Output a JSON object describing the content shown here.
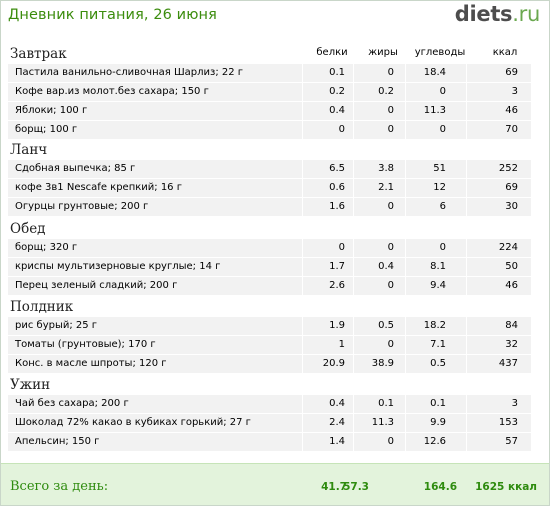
{
  "header": {
    "title": "Дневник питания, 26 июня",
    "logo_main": "diets",
    "logo_dot": ".",
    "logo_tld": "ru"
  },
  "columns": {
    "protein": "белки",
    "fat": "жиры",
    "carbs": "углеводы",
    "kcal": "ккал"
  },
  "meals": [
    {
      "title": "Завтрак",
      "items": [
        {
          "name": "Пастила ванильно-сливочная Шарлиз; 22 г",
          "protein": "0.1",
          "fat": "0",
          "carbs": "18.4",
          "kcal": "69"
        },
        {
          "name": "Кофе вар.из молот.без сахара; 150 г",
          "protein": "0.2",
          "fat": "0.2",
          "carbs": "0",
          "kcal": "3"
        },
        {
          "name": "Яблоки; 100 г",
          "protein": "0.4",
          "fat": "0",
          "carbs": "11.3",
          "kcal": "46"
        },
        {
          "name": "борщ; 100 г",
          "protein": "0",
          "fat": "0",
          "carbs": "0",
          "kcal": "70"
        }
      ]
    },
    {
      "title": "Ланч",
      "items": [
        {
          "name": "Сдобная выпечка; 85 г",
          "protein": "6.5",
          "fat": "3.8",
          "carbs": "51",
          "kcal": "252"
        },
        {
          "name": "кофе 3в1 Nescafe крепкий; 16 г",
          "protein": "0.6",
          "fat": "2.1",
          "carbs": "12",
          "kcal": "69"
        },
        {
          "name": "Огурцы грунтовые; 200 г",
          "protein": "1.6",
          "fat": "0",
          "carbs": "6",
          "kcal": "30"
        }
      ]
    },
    {
      "title": "Обед",
      "items": [
        {
          "name": "борщ; 320 г",
          "protein": "0",
          "fat": "0",
          "carbs": "0",
          "kcal": "224"
        },
        {
          "name": "криспы мультизерновые круглые; 14 г",
          "protein": "1.7",
          "fat": "0.4",
          "carbs": "8.1",
          "kcal": "50"
        },
        {
          "name": "Перец зеленый сладкий; 200 г",
          "protein": "2.6",
          "fat": "0",
          "carbs": "9.4",
          "kcal": "46"
        }
      ]
    },
    {
      "title": "Полдник",
      "items": [
        {
          "name": "рис бурый; 25 г",
          "protein": "1.9",
          "fat": "0.5",
          "carbs": "18.2",
          "kcal": "84"
        },
        {
          "name": "Томаты (грунтовые); 170 г",
          "protein": "1",
          "fat": "0",
          "carbs": "7.1",
          "kcal": "32"
        },
        {
          "name": "Конс. в масле шпроты; 120 г",
          "protein": "20.9",
          "fat": "38.9",
          "carbs": "0.5",
          "kcal": "437"
        }
      ]
    },
    {
      "title": "Ужин",
      "items": [
        {
          "name": "Чай без сахара; 200 г",
          "protein": "0.4",
          "fat": "0.1",
          "carbs": "0.1",
          "kcal": "3"
        },
        {
          "name": "Шоколад 72% какао в кубиках горький; 27 г",
          "protein": "2.4",
          "fat": "11.3",
          "carbs": "9.9",
          "kcal": "153"
        },
        {
          "name": "Апельсин; 150 г",
          "protein": "1.4",
          "fat": "0",
          "carbs": "12.6",
          "kcal": "57"
        }
      ]
    }
  ],
  "total": {
    "label": "Всего за день:",
    "protein": "41.7",
    "fat": "57.3",
    "carbs": "164.6",
    "kcal": "1625 ккал"
  },
  "colors": {
    "title_green": "#3c8d0e",
    "total_bg": "#e3f3dc",
    "row_bg": "#f2f2f2"
  }
}
